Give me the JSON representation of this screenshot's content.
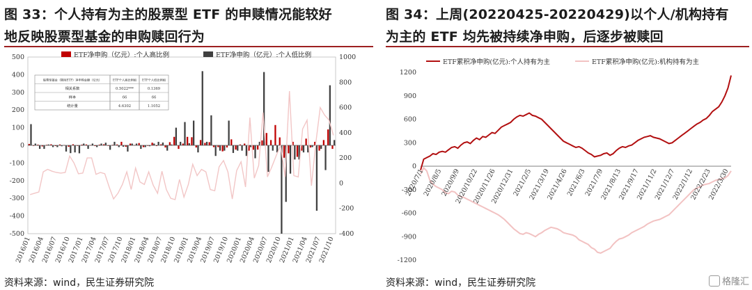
{
  "left": {
    "title_line1": "图 33：个人持有为主的股票型 ETF 的申赎情况能较好",
    "title_line2": "地反映股票型基金的申购赎回行为",
    "source": "资料来源：wind，民生证券研究院",
    "table": {
      "headers": [
        "股票型基金（剔除ETF）净申购金额（亿元）",
        "ETF个人高比例组",
        "ETF个人低比例组"
      ],
      "rows": [
        [
          "相关系数",
          "0.5022***",
          "0.1369"
        ],
        [
          "样本",
          "66",
          "66"
        ],
        [
          "统计量",
          "4.6302",
          "1.1052"
        ]
      ]
    }
  },
  "right": {
    "title_line1": "图 34：上周(20220425-20220429)以个人/机构持有",
    "title_line2": "为主的 ETF 均先被持续净申购，后逐步被赎回",
    "source": "资料来源：wind，民生证券研究院",
    "watermark": "格隆汇"
  },
  "chart_data": [
    {
      "type": "bar",
      "title": "",
      "legend_position": "top",
      "categories_count": 70,
      "x_tick_labels": [
        "2016/01",
        "2016/04",
        "2016/07",
        "2016/10",
        "2017/01",
        "2017/04",
        "2017/07",
        "2017/10",
        "2018/01",
        "2018/04",
        "2018/07",
        "2018/10",
        "2019/01",
        "2019/04",
        "2019/07",
        "2019/10",
        "2020/01",
        "2020/04",
        "2020/07",
        "2020/10",
        "2021/01",
        "2021/04",
        "2021/07",
        "2021/10"
      ],
      "ylim_left": [
        -500,
        500
      ],
      "yticks_left": [
        -500,
        -400,
        -300,
        -200,
        -100,
        0,
        100,
        200,
        300,
        400,
        500
      ],
      "ylim_right": [
        -400,
        1000
      ],
      "yticks_right": [
        -400,
        -200,
        0,
        200,
        400,
        600,
        800,
        1000
      ],
      "series": [
        {
          "name": "ETF净申购（亿元）:个人高比例",
          "type": "bar",
          "axis": "left",
          "color": "#c00000",
          "values": [
            8,
            -2,
            4,
            -6,
            3,
            6,
            -4,
            5,
            2,
            -8,
            6,
            -3,
            4,
            5,
            2,
            -4,
            4,
            6,
            -3,
            3,
            5,
            20,
            -8,
            10,
            2,
            13,
            -10,
            -3,
            15,
            -4,
            6,
            -12,
            18,
            48,
            -20,
            10,
            48,
            46,
            -12,
            30,
            14,
            18,
            -10,
            -10,
            -34,
            -12,
            34,
            -24,
            5,
            10,
            -30,
            -25,
            -24,
            28,
            70,
            30,
            115,
            45,
            -70,
            -45,
            20,
            -65,
            -30,
            38,
            -12,
            20,
            -30,
            30,
            90,
            -20
          ]
        },
        {
          "name": "ETF净申购（亿元）:个人低比例",
          "type": "bar",
          "axis": "left",
          "color": "#404040",
          "values": [
            120,
            10,
            -20,
            -20,
            5,
            -10,
            -10,
            -5,
            -35,
            -44,
            -40,
            -45,
            10,
            -20,
            10,
            -10,
            10,
            15,
            -25,
            20,
            -10,
            -8,
            -35,
            10,
            10,
            -20,
            -10,
            -5,
            10,
            20,
            16,
            -30,
            5,
            100,
            20,
            132,
            12,
            140,
            -40,
            420,
            20,
            170,
            -60,
            -30,
            -30,
            140,
            -43,
            -30,
            -30,
            -60,
            -10,
            -73,
            20,
            415,
            -150,
            -30,
            -40,
            -500,
            -320,
            -160,
            -80,
            -80,
            -40,
            -40,
            -10,
            -370,
            -20,
            -140,
            340,
            30
          ]
        },
        {
          "name": "股票型基金（剔除ETF）净申购（亿元）",
          "type": "line",
          "axis": "right",
          "color": "#f2c6c6",
          "values": [
            -90,
            -80,
            -70,
            90,
            110,
            95,
            85,
            80,
            85,
            215,
            160,
            75,
            80,
            200,
            200,
            70,
            85,
            75,
            -30,
            -125,
            -80,
            -10,
            90,
            -50,
            120,
            10,
            -10,
            90,
            -15,
            -80,
            95,
            -50,
            -120,
            -130,
            30,
            -110,
            -10,
            150,
            60,
            110,
            90,
            -50,
            -60,
            130,
            180,
            90,
            -125,
            100,
            170,
            -30,
            520,
            40,
            140,
            560,
            50,
            130,
            220,
            300,
            50,
            730,
            60,
            50,
            430,
            500,
            -20,
            320,
            600,
            540,
            500,
            380
          ]
        }
      ]
    },
    {
      "type": "line",
      "title": "",
      "legend_position": "top",
      "x_tick_labels": [
        "2020/7/1",
        "2020/8/5",
        "2020/9/9",
        "2020/10/22",
        "2020/11/26",
        "2020/12/31",
        "2021/2/5",
        "2021/3/19",
        "2021/4/26",
        "2021/6/3",
        "2021/7/9",
        "2021/8/13",
        "2021/9/17",
        "2021/11/2",
        "2021/12/7",
        "2022/1/12",
        "2022/2/23",
        "2022/3/30"
      ],
      "ylim": [
        -1200,
        1200
      ],
      "yticks": [
        -1200,
        -900,
        -600,
        -300,
        0,
        300,
        600,
        900,
        1200
      ],
      "series": [
        {
          "name": "ETF累积净申购(亿元):个人持有为主",
          "color": "#b20f10",
          "x": [
            0,
            5,
            10,
            15,
            20,
            25,
            30,
            35,
            40,
            45,
            50,
            55,
            60,
            65,
            70,
            75,
            80,
            85,
            90,
            95,
            100,
            105,
            110,
            115,
            120,
            125,
            130,
            135,
            140,
            145,
            150,
            155,
            160,
            165,
            170,
            175,
            180,
            185,
            190,
            195,
            200,
            205,
            210,
            215,
            220,
            225,
            230,
            235,
            240,
            245,
            250,
            255,
            260,
            265,
            270,
            275,
            280,
            285,
            290,
            295,
            300,
            305,
            310,
            315,
            320,
            325,
            330,
            335,
            340,
            345,
            350,
            355,
            360,
            365,
            370,
            375,
            380,
            385,
            390,
            395,
            400,
            405,
            410,
            415,
            420,
            425,
            430,
            435,
            440,
            445,
            450,
            455,
            460,
            465,
            470,
            475,
            480,
            485,
            490,
            495,
            500
          ],
          "values": [
            -50,
            90,
            110,
            130,
            160,
            150,
            180,
            190,
            180,
            210,
            240,
            250,
            230,
            270,
            300,
            310,
            290,
            330,
            360,
            340,
            380,
            370,
            400,
            430,
            420,
            460,
            500,
            520,
            540,
            560,
            600,
            630,
            650,
            640,
            660,
            680,
            650,
            640,
            620,
            600,
            560,
            520,
            480,
            440,
            400,
            360,
            320,
            300,
            280,
            260,
            240,
            250,
            230,
            200,
            170,
            150,
            120,
            130,
            140,
            160,
            170,
            140,
            160,
            200,
            230,
            250,
            240,
            260,
            270,
            300,
            330,
            350,
            370,
            380,
            390,
            370,
            360,
            350,
            330,
            310,
            290,
            300,
            330,
            360,
            390,
            420,
            450,
            480,
            510,
            540,
            560,
            590,
            610,
            650,
            700,
            730,
            760,
            820,
            900,
            1000,
            1160
          ]
        },
        {
          "name": "ETF累积净申购(亿元):机构持有为主",
          "color": "#f2c2c2",
          "x": [
            0,
            5,
            10,
            15,
            20,
            25,
            30,
            35,
            40,
            45,
            50,
            55,
            60,
            65,
            70,
            75,
            80,
            85,
            90,
            95,
            100,
            105,
            110,
            115,
            120,
            125,
            130,
            135,
            140,
            145,
            150,
            155,
            160,
            165,
            170,
            175,
            180,
            185,
            190,
            195,
            200,
            205,
            210,
            215,
            220,
            225,
            230,
            235,
            240,
            245,
            250,
            255,
            260,
            265,
            270,
            275,
            280,
            285,
            290,
            295,
            300,
            305,
            310,
            315,
            320,
            325,
            330,
            335,
            340,
            345,
            350,
            355,
            360,
            365,
            370,
            375,
            380,
            385,
            390,
            395,
            400,
            405,
            410,
            415,
            420,
            425,
            430,
            435,
            440,
            445,
            450,
            455,
            460,
            465,
            470,
            475,
            480,
            485,
            490,
            495,
            500
          ],
          "values": [
            -100,
            -20,
            -60,
            -180,
            -230,
            -260,
            -280,
            -300,
            -340,
            -350,
            -320,
            -330,
            -370,
            -390,
            -400,
            -420,
            -440,
            -460,
            -480,
            -500,
            -520,
            -540,
            -560,
            -580,
            -600,
            -620,
            -650,
            -680,
            -720,
            -760,
            -800,
            -830,
            -860,
            -870,
            -850,
            -860,
            -880,
            -900,
            -870,
            -850,
            -820,
            -800,
            -780,
            -790,
            -800,
            -820,
            -850,
            -860,
            -870,
            -880,
            -900,
            -940,
            -960,
            -980,
            -1000,
            -1040,
            -1060,
            -1100,
            -1110,
            -1090,
            -1070,
            -1050,
            -1000,
            -960,
            -930,
            -920,
            -900,
            -880,
            -850,
            -830,
            -810,
            -790,
            -770,
            -740,
            -720,
            -700,
            -690,
            -680,
            -660,
            -640,
            -620,
            -580,
            -540,
            -500,
            -460,
            -420,
            -380,
            -340,
            -300,
            -280,
            -260,
            -240,
            -230,
            -220,
            -200,
            -180,
            -170,
            -160,
            -150,
            -120,
            -60
          ]
        }
      ]
    }
  ]
}
